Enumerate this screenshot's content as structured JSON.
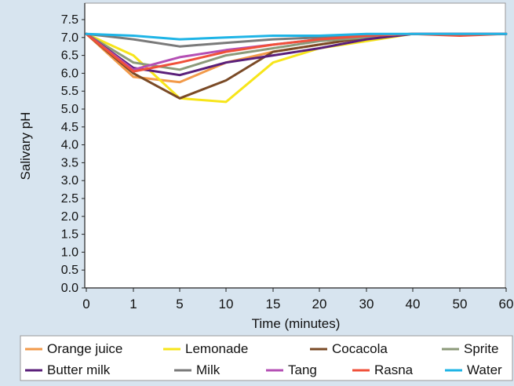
{
  "chart_data": {
    "type": "line",
    "ylabel": "Salivary pH",
    "xlabel": "Time (minutes)",
    "x": [
      "0",
      "1",
      "5",
      "10",
      "15",
      "20",
      "30",
      "40",
      "50",
      "60"
    ],
    "ylim": [
      0.0,
      7.5
    ],
    "yticks": [
      "0.0",
      "0.5",
      "1.0",
      "1.5",
      "2.0",
      "2.5",
      "3.0",
      "3.5",
      "4.0",
      "4.5",
      "5.0",
      "5.5",
      "6.0",
      "6.5",
      "7.0",
      "7.5"
    ],
    "grid": false,
    "legend_position": "bottom",
    "series": [
      {
        "name": "Orange juice",
        "color": "#f29a4a",
        "values": [
          7.1,
          5.9,
          5.75,
          6.3,
          6.6,
          6.8,
          7.0,
          7.1,
          7.1,
          7.1
        ]
      },
      {
        "name": "Lemonade",
        "color": "#f7e51a",
        "values": [
          7.1,
          6.5,
          5.3,
          5.2,
          6.3,
          6.7,
          6.9,
          7.1,
          7.1,
          7.1
        ]
      },
      {
        "name": "Cocacola",
        "color": "#7a4a26",
        "values": [
          7.1,
          6.0,
          5.3,
          5.8,
          6.6,
          6.8,
          7.0,
          7.1,
          7.1,
          7.1
        ]
      },
      {
        "name": "Sprite",
        "color": "#8c9a7a",
        "values": [
          7.1,
          6.3,
          6.1,
          6.5,
          6.7,
          6.9,
          7.0,
          7.1,
          7.1,
          7.1
        ]
      },
      {
        "name": "Butter milk",
        "color": "#5a1f7a",
        "values": [
          7.1,
          6.15,
          5.95,
          6.3,
          6.5,
          6.7,
          6.95,
          7.1,
          7.1,
          7.1
        ]
      },
      {
        "name": "Milk",
        "color": "#7a7a7a",
        "values": [
          7.1,
          6.95,
          6.75,
          6.85,
          6.95,
          7.0,
          7.05,
          7.1,
          7.1,
          7.1
        ]
      },
      {
        "name": "Tang",
        "color": "#b44fb4",
        "values": [
          7.1,
          6.1,
          6.45,
          6.65,
          6.8,
          6.95,
          7.05,
          7.1,
          7.1,
          7.1
        ]
      },
      {
        "name": "Rasna",
        "color": "#f0503a",
        "values": [
          7.1,
          6.05,
          6.3,
          6.6,
          6.8,
          6.95,
          7.05,
          7.1,
          7.05,
          7.1
        ]
      },
      {
        "name": "Water",
        "color": "#1eb4e6",
        "values": [
          7.1,
          7.05,
          6.95,
          7.0,
          7.05,
          7.05,
          7.1,
          7.1,
          7.1,
          7.1
        ]
      }
    ]
  }
}
